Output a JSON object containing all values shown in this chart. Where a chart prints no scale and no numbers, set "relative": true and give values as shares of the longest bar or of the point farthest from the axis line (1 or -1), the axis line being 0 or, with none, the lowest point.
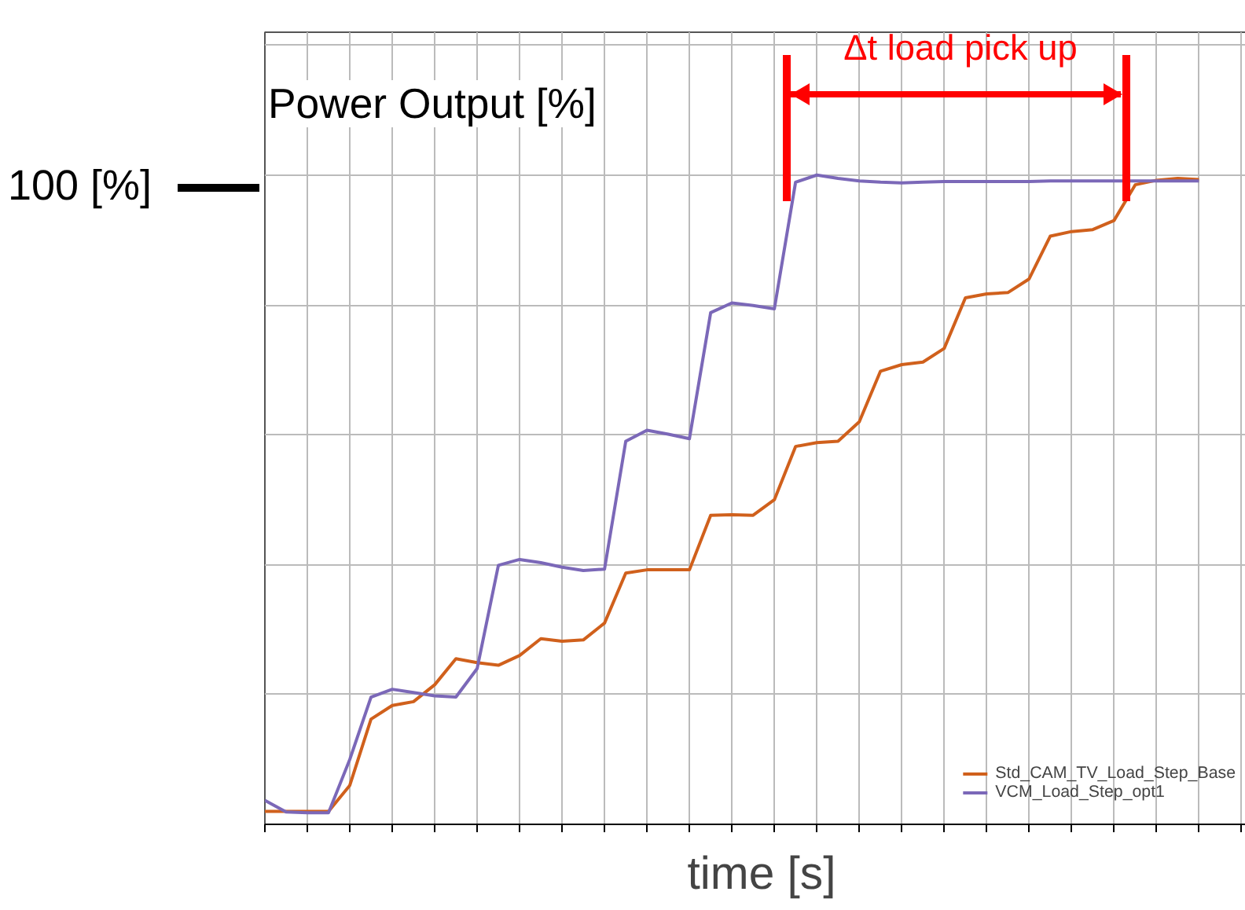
{
  "chart_data": {
    "type": "line",
    "title": "Power Output [%]",
    "xlabel": "time [s]",
    "relative": true,
    "grid": true,
    "legend": "bottom right",
    "marker": "none",
    "line_style": "solid",
    "categories": [
      null,
      null,
      null,
      null,
      null,
      null,
      null,
      null,
      null,
      null,
      null,
      null,
      null,
      null,
      null,
      null,
      null,
      null,
      null,
      null,
      null,
      null,
      null,
      null,
      null,
      null,
      null,
      null,
      null,
      null,
      null,
      null,
      null,
      null,
      null,
      null,
      null,
      null,
      null,
      null,
      null,
      null,
      null,
      null,
      null,
      null,
      null
    ],
    "series": [
      {
        "name": "Std_CAM_TV_Load_Step_Base",
        "color": "#d0601c",
        "values": [
          0.02,
          0.02,
          0.02,
          0.02,
          0.06,
          0.162,
          0.183,
          0.189,
          0.215,
          0.255,
          0.249,
          0.245,
          0.26,
          0.286,
          0.282,
          0.284,
          0.31,
          0.387,
          0.392,
          0.392,
          0.392,
          0.476,
          0.477,
          0.476,
          0.5,
          0.582,
          0.588,
          0.59,
          0.62,
          0.698,
          0.708,
          0.712,
          0.733,
          0.811,
          0.817,
          0.819,
          0.84,
          0.906,
          0.913,
          0.916,
          0.93,
          0.985,
          0.992,
          0.995,
          0.993,
          null,
          null
        ]
      },
      {
        "name": "VCM_Load_Step_opt1",
        "color": "#7b68b8",
        "values": [
          0.037,
          0.019,
          0.018,
          0.018,
          0.1,
          0.196,
          0.208,
          0.203,
          0.198,
          0.196,
          0.24,
          0.399,
          0.408,
          0.403,
          0.396,
          0.391,
          0.393,
          0.59,
          0.607,
          0.601,
          0.594,
          0.788,
          0.803,
          0.799,
          0.794,
          0.989,
          1.0,
          0.995,
          0.991,
          0.989,
          0.988,
          0.989,
          0.99,
          0.99,
          0.99,
          0.99,
          0.99,
          0.991,
          0.991,
          0.991,
          0.991,
          0.991,
          0.991,
          0.991,
          0.991,
          null,
          null
        ]
      }
    ],
    "annotations": [
      "Δt  load pick up",
      "100 [%]"
    ]
  }
}
